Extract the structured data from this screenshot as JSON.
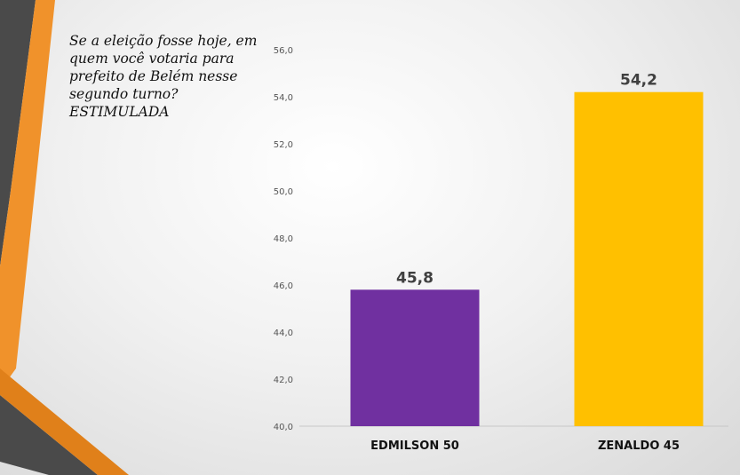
{
  "question": "Se a eleição fosse hoje, em quem você votaria para prefeito de Belém nesse segundo turno? ESTIMULADA",
  "colors": {
    "accent_orange": "#f0922b",
    "accent_dark": "#4a4a4a",
    "bar_edmilson": "#7030a0",
    "bar_zenaldo": "#ffc000"
  },
  "chart_data": {
    "type": "bar",
    "categories": [
      "EDMILSON 50",
      "ZENALDO 45"
    ],
    "values": [
      45.8,
      54.2
    ],
    "value_labels": [
      "45,8",
      "54,2"
    ],
    "ylim": [
      40,
      56
    ],
    "yticks": [
      40,
      42,
      44,
      46,
      48,
      50,
      52,
      54,
      56
    ],
    "ytick_labels": [
      "40,0",
      "42,0",
      "44,0",
      "46,0",
      "48,0",
      "50,0",
      "52,0",
      "54,0",
      "56,0"
    ],
    "grid": false,
    "legend": "none"
  }
}
